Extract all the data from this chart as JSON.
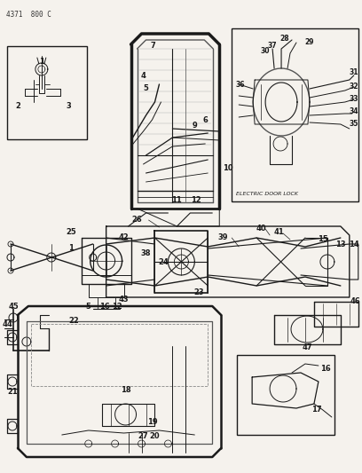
{
  "title": "4371  800 C",
  "background_color": "#f0ede8",
  "line_color": "#1a1a1a",
  "text_color": "#1a1a1a",
  "fig_width": 4.08,
  "fig_height": 5.33,
  "dpi": 100
}
